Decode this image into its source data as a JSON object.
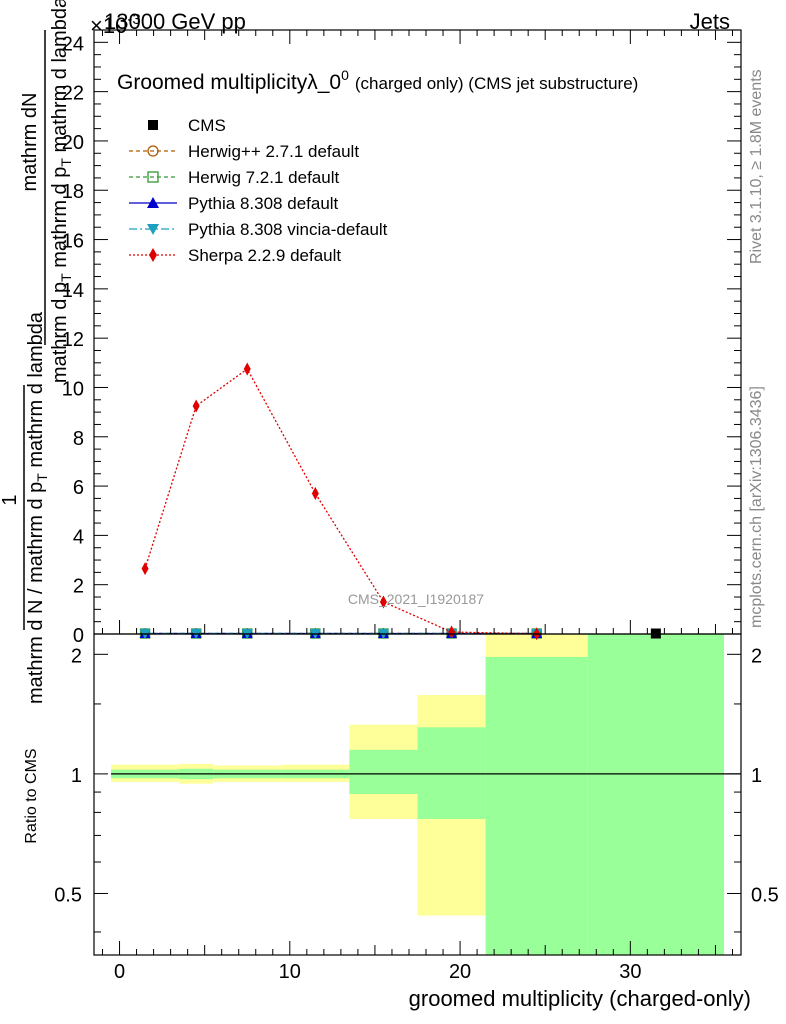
{
  "header": {
    "energy_label": "13000 GeV pp",
    "exponent_label": "×10",
    "exponent_power": "-3",
    "category": "Jets"
  },
  "side_text": {
    "rivet": "Rivet 3.1.10, ≥ 1.8M events",
    "source": "mcplots.cern.ch [arXiv:1306.3436]"
  },
  "chart_data": [
    {
      "type": "line",
      "title": "Groomed multiplicityλ_0",
      "title_sup": "0",
      "title_suffix": "(charged only) (CMS jet substructure)",
      "analysis_label": "CMS_2021_I1920187",
      "ylabel_top": "1",
      "ylabel_bottom": "mathrm d N / mathrm d p_T mathrm d lambda",
      "ylabel_bottom_parts": [
        "mathrm d N / mathrm d p",
        "T",
        " mathrm d lambda"
      ],
      "ylabel_numerator": "mathrm dN",
      "ylabel_denominator_parts": [
        "mathrm d p",
        "T",
        " mathrm d p",
        "T",
        " mathrm d lambda"
      ],
      "xlim": [
        -1.5,
        36.5
      ],
      "ylim": [
        0,
        24.5
      ],
      "yticks": [
        0,
        2,
        4,
        6,
        8,
        10,
        12,
        14,
        16,
        18,
        20,
        22,
        24
      ],
      "legend_position": "top-left",
      "series": [
        {
          "name": "CMS",
          "color": "#000000",
          "style": "marker-square",
          "x": [
            1.5,
            4.5,
            7.5,
            11.5,
            15.5,
            19.5,
            24.5,
            31.5
          ],
          "y": [
            0.02,
            0.02,
            0.02,
            0.02,
            0.02,
            0.02,
            0.02,
            0.02
          ]
        },
        {
          "name": "Herwig++ 2.7.1 default",
          "color": "#b05a00",
          "style": "dashed-open-circle",
          "x": [
            1.5,
            4.5,
            7.5,
            11.5,
            15.5,
            19.5,
            24.5
          ],
          "y": [
            0.02,
            0.02,
            0.02,
            0.02,
            0.02,
            0.02,
            0.02
          ]
        },
        {
          "name": "Herwig 7.2.1 default",
          "color": "#339933",
          "style": "dashed-open-square",
          "x": [
            1.5,
            4.5,
            7.5,
            11.5,
            15.5,
            19.5,
            24.5
          ],
          "y": [
            0.02,
            0.02,
            0.02,
            0.02,
            0.02,
            0.02,
            0.02
          ]
        },
        {
          "name": "Pythia 8.308 default",
          "color": "#0000cc",
          "style": "solid-triangle-up",
          "x": [
            1.5,
            4.5,
            7.5,
            11.5,
            15.5,
            19.5,
            24.5
          ],
          "y": [
            0.02,
            0.02,
            0.02,
            0.02,
            0.02,
            0.02,
            0.02
          ]
        },
        {
          "name": "Pythia 8.308 vincia-default",
          "color": "#1e9fbf",
          "style": "dashdot-triangle-down",
          "x": [
            1.5,
            4.5,
            7.5,
            11.5,
            15.5,
            19.5,
            24.5
          ],
          "y": [
            0.02,
            0.02,
            0.02,
            0.02,
            0.02,
            0.02,
            0.02
          ]
        },
        {
          "name": "Sherpa 2.2.9 default",
          "color": "#e00000",
          "style": "dotted-diamond",
          "x": [
            1.5,
            4.5,
            7.5,
            11.5,
            15.5,
            19.5,
            24.5
          ],
          "y": [
            2.65,
            9.25,
            10.75,
            5.7,
            1.3,
            0.08,
            0.01
          ]
        }
      ]
    },
    {
      "type": "area",
      "ylabel": "Ratio to CMS",
      "xlabel": "groomed multiplicity (charged-only)",
      "xlim": [
        -1.5,
        36.5
      ],
      "ylim": [
        0.35,
        2.25
      ],
      "log_y": true,
      "yticks": [
        0.5,
        1,
        2
      ],
      "xticks": [
        0,
        10,
        20,
        30
      ],
      "reference_line": 1,
      "bands": [
        {
          "x0": -0.5,
          "x1": 3.5,
          "yellow": [
            0.955,
            1.055
          ],
          "green": [
            0.975,
            1.025
          ]
        },
        {
          "x0": 3.5,
          "x1": 5.5,
          "yellow": [
            0.945,
            1.06
          ],
          "green": [
            0.97,
            1.03
          ]
        },
        {
          "x0": 5.5,
          "x1": 9.5,
          "yellow": [
            0.955,
            1.05
          ],
          "green": [
            0.975,
            1.025
          ]
        },
        {
          "x0": 9.5,
          "x1": 13.5,
          "yellow": [
            0.955,
            1.055
          ],
          "green": [
            0.975,
            1.025
          ]
        },
        {
          "x0": 13.5,
          "x1": 17.5,
          "yellow": [
            0.77,
            1.33
          ],
          "green": [
            0.89,
            1.15
          ]
        },
        {
          "x0": 17.5,
          "x1": 21.5,
          "yellow": [
            0.44,
            1.58
          ],
          "green": [
            0.77,
            1.31
          ]
        },
        {
          "x0": 21.5,
          "x1": 27.5,
          "yellow": [
            0.35,
            2.25
          ],
          "green": [
            0.35,
            1.97
          ]
        },
        {
          "x0": 27.5,
          "x1": 35.5,
          "yellow": [
            0.35,
            2.25
          ],
          "green": [
            0.35,
            2.25
          ]
        }
      ],
      "colors": {
        "yellow": "#ffff99",
        "green": "#99ff99"
      }
    }
  ]
}
